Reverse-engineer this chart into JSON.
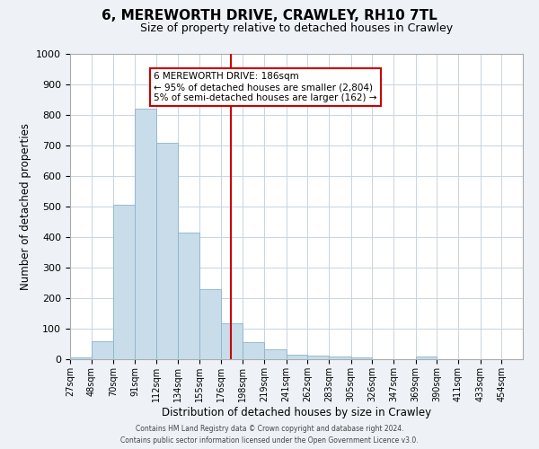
{
  "title": "6, MEREWORTH DRIVE, CRAWLEY, RH10 7TL",
  "subtitle": "Size of property relative to detached houses in Crawley",
  "xlabel": "Distribution of detached houses by size in Crawley",
  "ylabel": "Number of detached properties",
  "bin_labels": [
    "27sqm",
    "48sqm",
    "70sqm",
    "91sqm",
    "112sqm",
    "134sqm",
    "155sqm",
    "176sqm",
    "198sqm",
    "219sqm",
    "241sqm",
    "262sqm",
    "283sqm",
    "305sqm",
    "326sqm",
    "347sqm",
    "369sqm",
    "390sqm",
    "411sqm",
    "433sqm",
    "454sqm"
  ],
  "bar_values": [
    5,
    60,
    505,
    820,
    710,
    415,
    230,
    118,
    57,
    33,
    15,
    13,
    9,
    5,
    0,
    0,
    8,
    0,
    0,
    0,
    0
  ],
  "bar_color": "#c8dcea",
  "bar_edge_color": "#8ab4cc",
  "vline_x": 186,
  "vline_color": "#cc0000",
  "annotation_line1": "6 MEREWORTH DRIVE: 186sqm",
  "annotation_line2": "← 95% of detached houses are smaller (2,804)",
  "annotation_line3": "5% of semi-detached houses are larger (162) →",
  "annotation_box_color": "#ffffff",
  "annotation_box_edge_color": "#cc0000",
  "ylim": [
    0,
    1000
  ],
  "yticks": [
    0,
    100,
    200,
    300,
    400,
    500,
    600,
    700,
    800,
    900,
    1000
  ],
  "bin_edges": [
    27,
    48,
    70,
    91,
    112,
    134,
    155,
    176,
    198,
    219,
    241,
    262,
    283,
    305,
    326,
    347,
    369,
    390,
    411,
    433,
    454
  ],
  "footnote1": "Contains HM Land Registry data © Crown copyright and database right 2024.",
  "footnote2": "Contains public sector information licensed under the Open Government Licence v3.0.",
  "bg_color": "#eef2f7",
  "plot_bg_color": "#ffffff",
  "grid_color": "#c8d4e0",
  "title_fontsize": 11,
  "subtitle_fontsize": 9
}
